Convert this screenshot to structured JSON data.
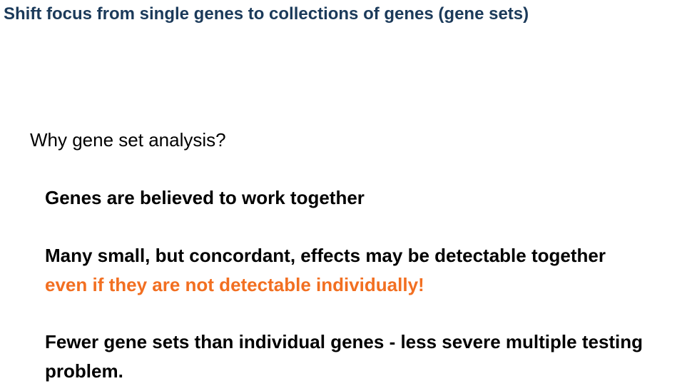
{
  "slide": {
    "title": "Shift focus from single genes to collections of genes (gene sets)",
    "question": "Why gene set analysis?",
    "points": [
      {
        "text": "Genes are believed to work together"
      },
      {
        "text": "Many small, but concordant, effects may be detectable together",
        "highlight": "even if they are not detectable individually!"
      },
      {
        "text": "Fewer gene sets than individual genes - less severe multiple testing problem."
      }
    ]
  },
  "colors": {
    "title": "#1b3a5a",
    "body": "#000000",
    "highlight": "#f26f21"
  }
}
